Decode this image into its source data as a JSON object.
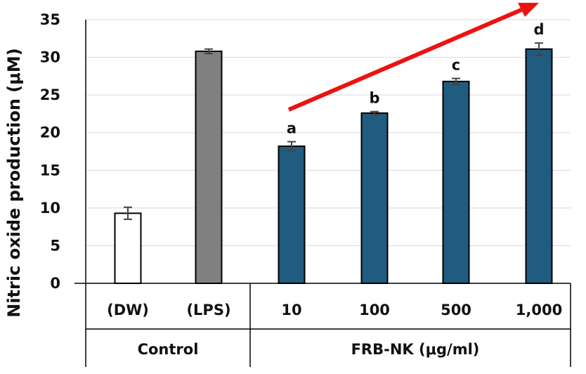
{
  "chart_data": {
    "type": "bar",
    "ylabel": "Nitric oxide production (μM)",
    "ylim": [
      0,
      35
    ],
    "yticks": [
      0,
      5,
      10,
      15,
      20,
      25,
      30,
      35
    ],
    "grid": true,
    "categories": [
      "(DW)",
      "(LPS)",
      "10",
      "100",
      "500",
      "1,000"
    ],
    "groups": [
      {
        "label": "Control",
        "categories": [
          "(DW)",
          "(LPS)"
        ]
      },
      {
        "label": "FRB-NK (μg/ml)",
        "categories": [
          "10",
          "100",
          "500",
          "1,000"
        ]
      }
    ],
    "values": [
      9.3,
      30.8,
      18.2,
      22.6,
      26.8,
      31.1
    ],
    "errors": [
      0.8,
      0.3,
      0.6,
      0.2,
      0.4,
      0.8
    ],
    "significance_labels": [
      "",
      "",
      "a",
      "b",
      "c",
      "d"
    ],
    "colors": {
      "(DW)": "#ffffff",
      "(LPS)": "#808080",
      "FRB-NK": "#1f5c7f",
      "trend_arrow": "#ee1111"
    },
    "annotations": [
      {
        "type": "arrow",
        "description": "increasing trend across FRB-NK doses",
        "color": "#ee1111"
      }
    ]
  }
}
